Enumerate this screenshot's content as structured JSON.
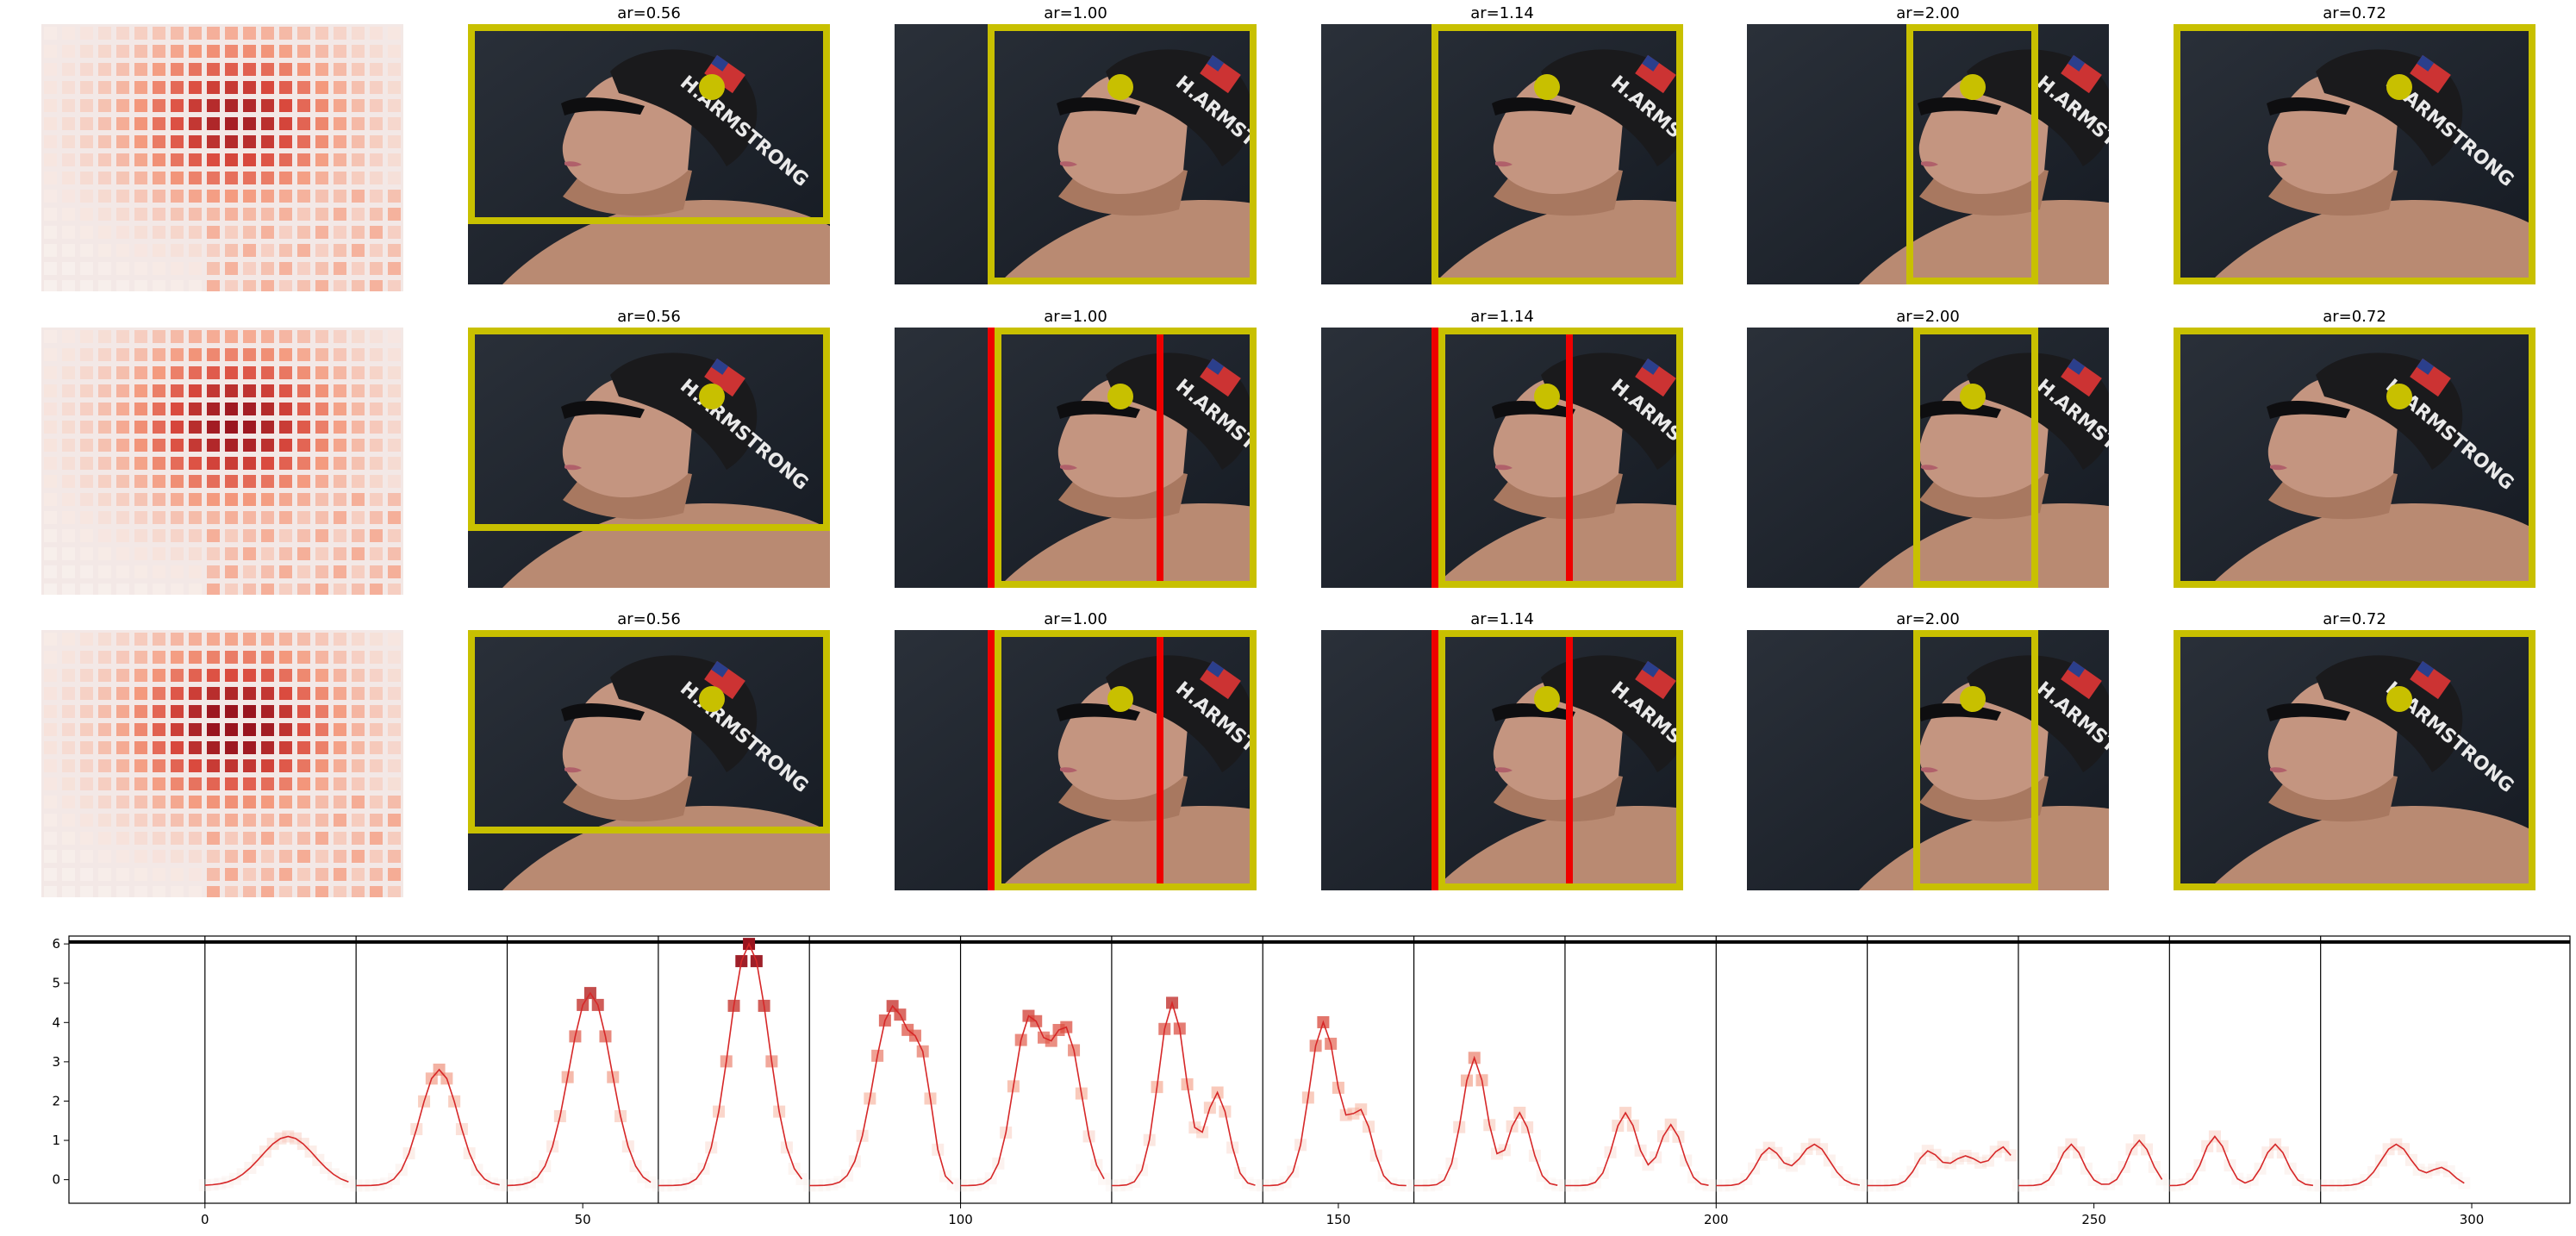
{
  "figure": {
    "rows": [
      {
        "titles": [
          "ar=0.56",
          "ar=1.00",
          "ar=1.14",
          "ar=2.00",
          "ar=0.72"
        ]
      },
      {
        "titles": [
          "ar=0.56",
          "ar=1.00",
          "ar=1.14",
          "ar=2.00",
          "ar=0.72"
        ]
      },
      {
        "titles": [
          "ar=0.56",
          "ar=1.00",
          "ar=1.14",
          "ar=2.00",
          "ar=0.72"
        ]
      }
    ],
    "photo_text": "H.ARMSTRONG",
    "colors": {
      "crop_box": "#c8c000",
      "red_box": "#ee0000",
      "dot": "#c8c000",
      "line": "#d62728"
    }
  },
  "chart_data": {
    "type": "line",
    "x_ticks": [
      0,
      50,
      100,
      150,
      200,
      250,
      300
    ],
    "y_ticks": [
      0,
      1,
      2,
      3,
      4,
      5,
      6
    ],
    "xlim": [
      -18,
      313
    ],
    "ylim": [
      -0.6,
      6.2
    ],
    "hline": 6.05,
    "vlines": [
      0,
      20,
      40,
      60,
      80,
      100,
      120,
      140,
      160,
      180,
      200,
      220,
      240,
      260,
      280
    ],
    "groups": [
      {
        "x0": 0,
        "peaks": [
          [
            11,
            1.1,
            3.5
          ]
        ]
      },
      {
        "x0": 20,
        "peaks": [
          [
            31,
            2.8,
            2.5
          ]
        ]
      },
      {
        "x0": 40,
        "peaks": [
          [
            51,
            4.75,
            2.8
          ]
        ]
      },
      {
        "x0": 60,
        "peaks": [
          [
            72,
            6.0,
            2.6
          ]
        ]
      },
      {
        "x0": 80,
        "peaks": [
          [
            91,
            4.4,
            2.5
          ],
          [
            95,
            2.0,
            1.3
          ]
        ]
      },
      {
        "x0": 100,
        "peaks": [
          [
            109,
            4.0,
            2.0
          ],
          [
            114,
            3.7,
            2.0
          ]
        ]
      },
      {
        "x0": 120,
        "peaks": [
          [
            128,
            4.5,
            1.8
          ],
          [
            134,
            2.2,
            1.5
          ]
        ]
      },
      {
        "x0": 140,
        "peaks": [
          [
            148,
            4.0,
            1.8
          ],
          [
            153,
            1.7,
            1.5
          ]
        ]
      },
      {
        "x0": 160,
        "peaks": [
          [
            168,
            3.1,
            1.6
          ],
          [
            174,
            1.7,
            1.5
          ]
        ]
      },
      {
        "x0": 180,
        "peaks": [
          [
            188,
            1.7,
            1.6
          ],
          [
            194,
            1.4,
            1.5
          ]
        ]
      },
      {
        "x0": 200,
        "peaks": [
          [
            207,
            0.8,
            1.6
          ],
          [
            213,
            0.9,
            2.0
          ]
        ]
      },
      {
        "x0": 220,
        "peaks": [
          [
            228,
            0.7,
            1.5
          ],
          [
            233,
            0.6,
            2.0
          ],
          [
            238,
            0.8,
            1.5
          ]
        ]
      },
      {
        "x0": 240,
        "peaks": [
          [
            247,
            0.9,
            1.5
          ],
          [
            256,
            1.0,
            1.5
          ]
        ]
      },
      {
        "x0": 260,
        "peaks": [
          [
            266,
            1.1,
            1.5
          ],
          [
            274,
            0.9,
            1.5
          ]
        ]
      },
      {
        "x0": 280,
        "peaks": [
          [
            290,
            0.9,
            2.0
          ],
          [
            296,
            0.3,
            1.5
          ]
        ]
      }
    ]
  }
}
